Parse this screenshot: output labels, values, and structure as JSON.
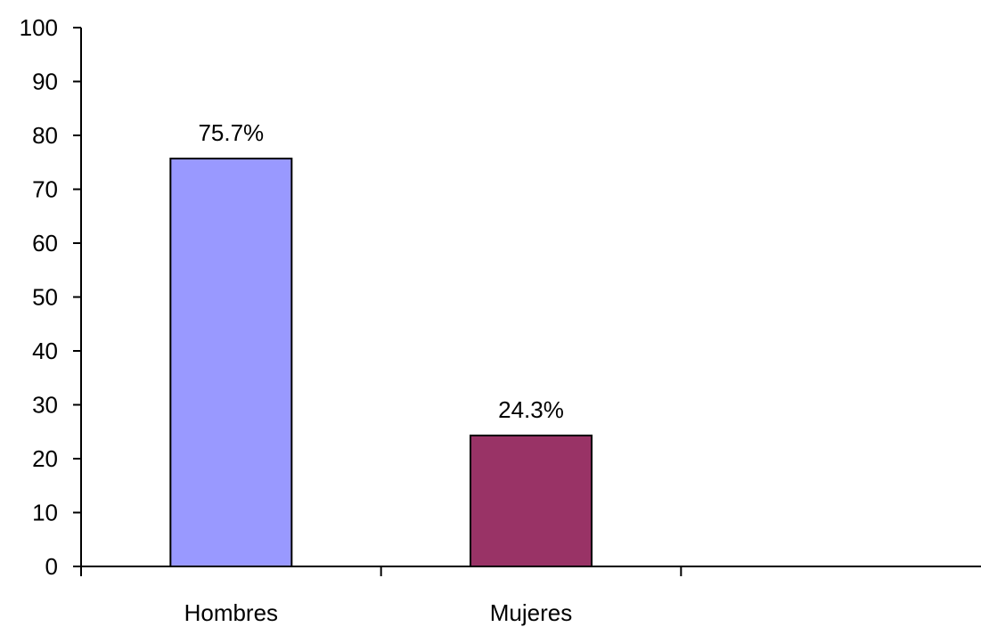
{
  "chart_data": {
    "type": "bar",
    "categories": [
      "Hombres",
      "Mujeres",
      ""
    ],
    "values": [
      75.7,
      24.3,
      null
    ],
    "data_labels": [
      "75.7%",
      "24.3%",
      ""
    ],
    "colors": [
      "#9999ff",
      "#993366"
    ],
    "ylim": [
      0,
      100
    ],
    "yticks": [
      0,
      10,
      20,
      30,
      40,
      50,
      60,
      70,
      80,
      90,
      100
    ],
    "ytick_labels": [
      "0",
      "10",
      "20",
      "30",
      "40",
      "50",
      "60",
      "70",
      "80",
      "90",
      "100"
    ],
    "grid": false,
    "legend": "none"
  }
}
